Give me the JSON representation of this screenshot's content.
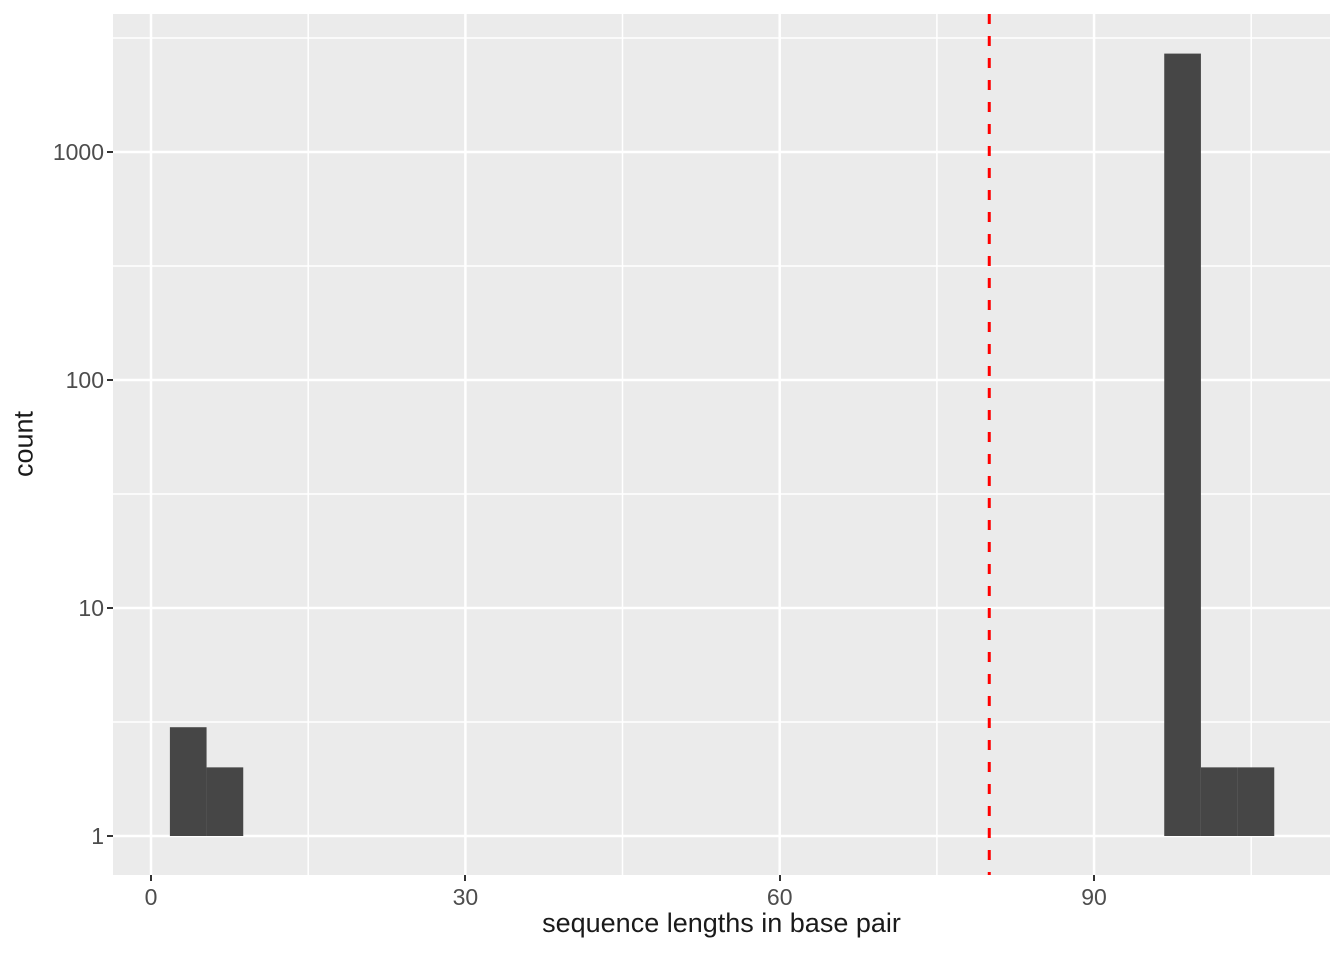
{
  "chart_data": {
    "type": "bar",
    "subtype": "histogram-log-y",
    "title": "",
    "xlabel": "sequence lengths in base pair",
    "ylabel": "count",
    "x_ticks": [
      {
        "value": 0,
        "label": "0"
      },
      {
        "value": 30,
        "label": "30"
      },
      {
        "value": 60,
        "label": "60"
      },
      {
        "value": 90,
        "label": "90"
      }
    ],
    "x_minor_ticks": [
      15,
      45,
      75,
      105
    ],
    "y_scale": "log10",
    "y_ticks": [
      {
        "value": 1,
        "label": "1"
      },
      {
        "value": 10,
        "label": "10"
      },
      {
        "value": 100,
        "label": "100"
      },
      {
        "value": 1000,
        "label": "1000"
      }
    ],
    "y_minor_ticks": [
      3.162,
      31.62,
      316.2,
      3162
    ],
    "xlim": [
      -3.63,
      112.52
    ],
    "ylim_log10": [
      -0.171,
      3.605
    ],
    "bar_baseline": 1,
    "bars": [
      {
        "x0": 1.8,
        "x1": 5.3,
        "count": 3
      },
      {
        "x0": 5.3,
        "x1": 8.8,
        "count": 2
      },
      {
        "x0": 96.7,
        "x1": 100.2,
        "count": 2700
      },
      {
        "x0": 100.2,
        "x1": 103.7,
        "count": 2
      },
      {
        "x0": 103.7,
        "x1": 107.2,
        "count": 2
      }
    ],
    "vline": {
      "x": 80,
      "style": "dashed",
      "color": "#ff0000"
    },
    "grid": {
      "major": true,
      "minor": true
    },
    "legend": "none",
    "colors": {
      "panel_bg": "#ebebeb",
      "grid": "#ffffff",
      "bar": "#464646",
      "tick_text": "#4d4d4d",
      "axis_title": "#1a1a1a",
      "tick_mark": "#333333",
      "figure_bg": "#ffffff"
    }
  }
}
